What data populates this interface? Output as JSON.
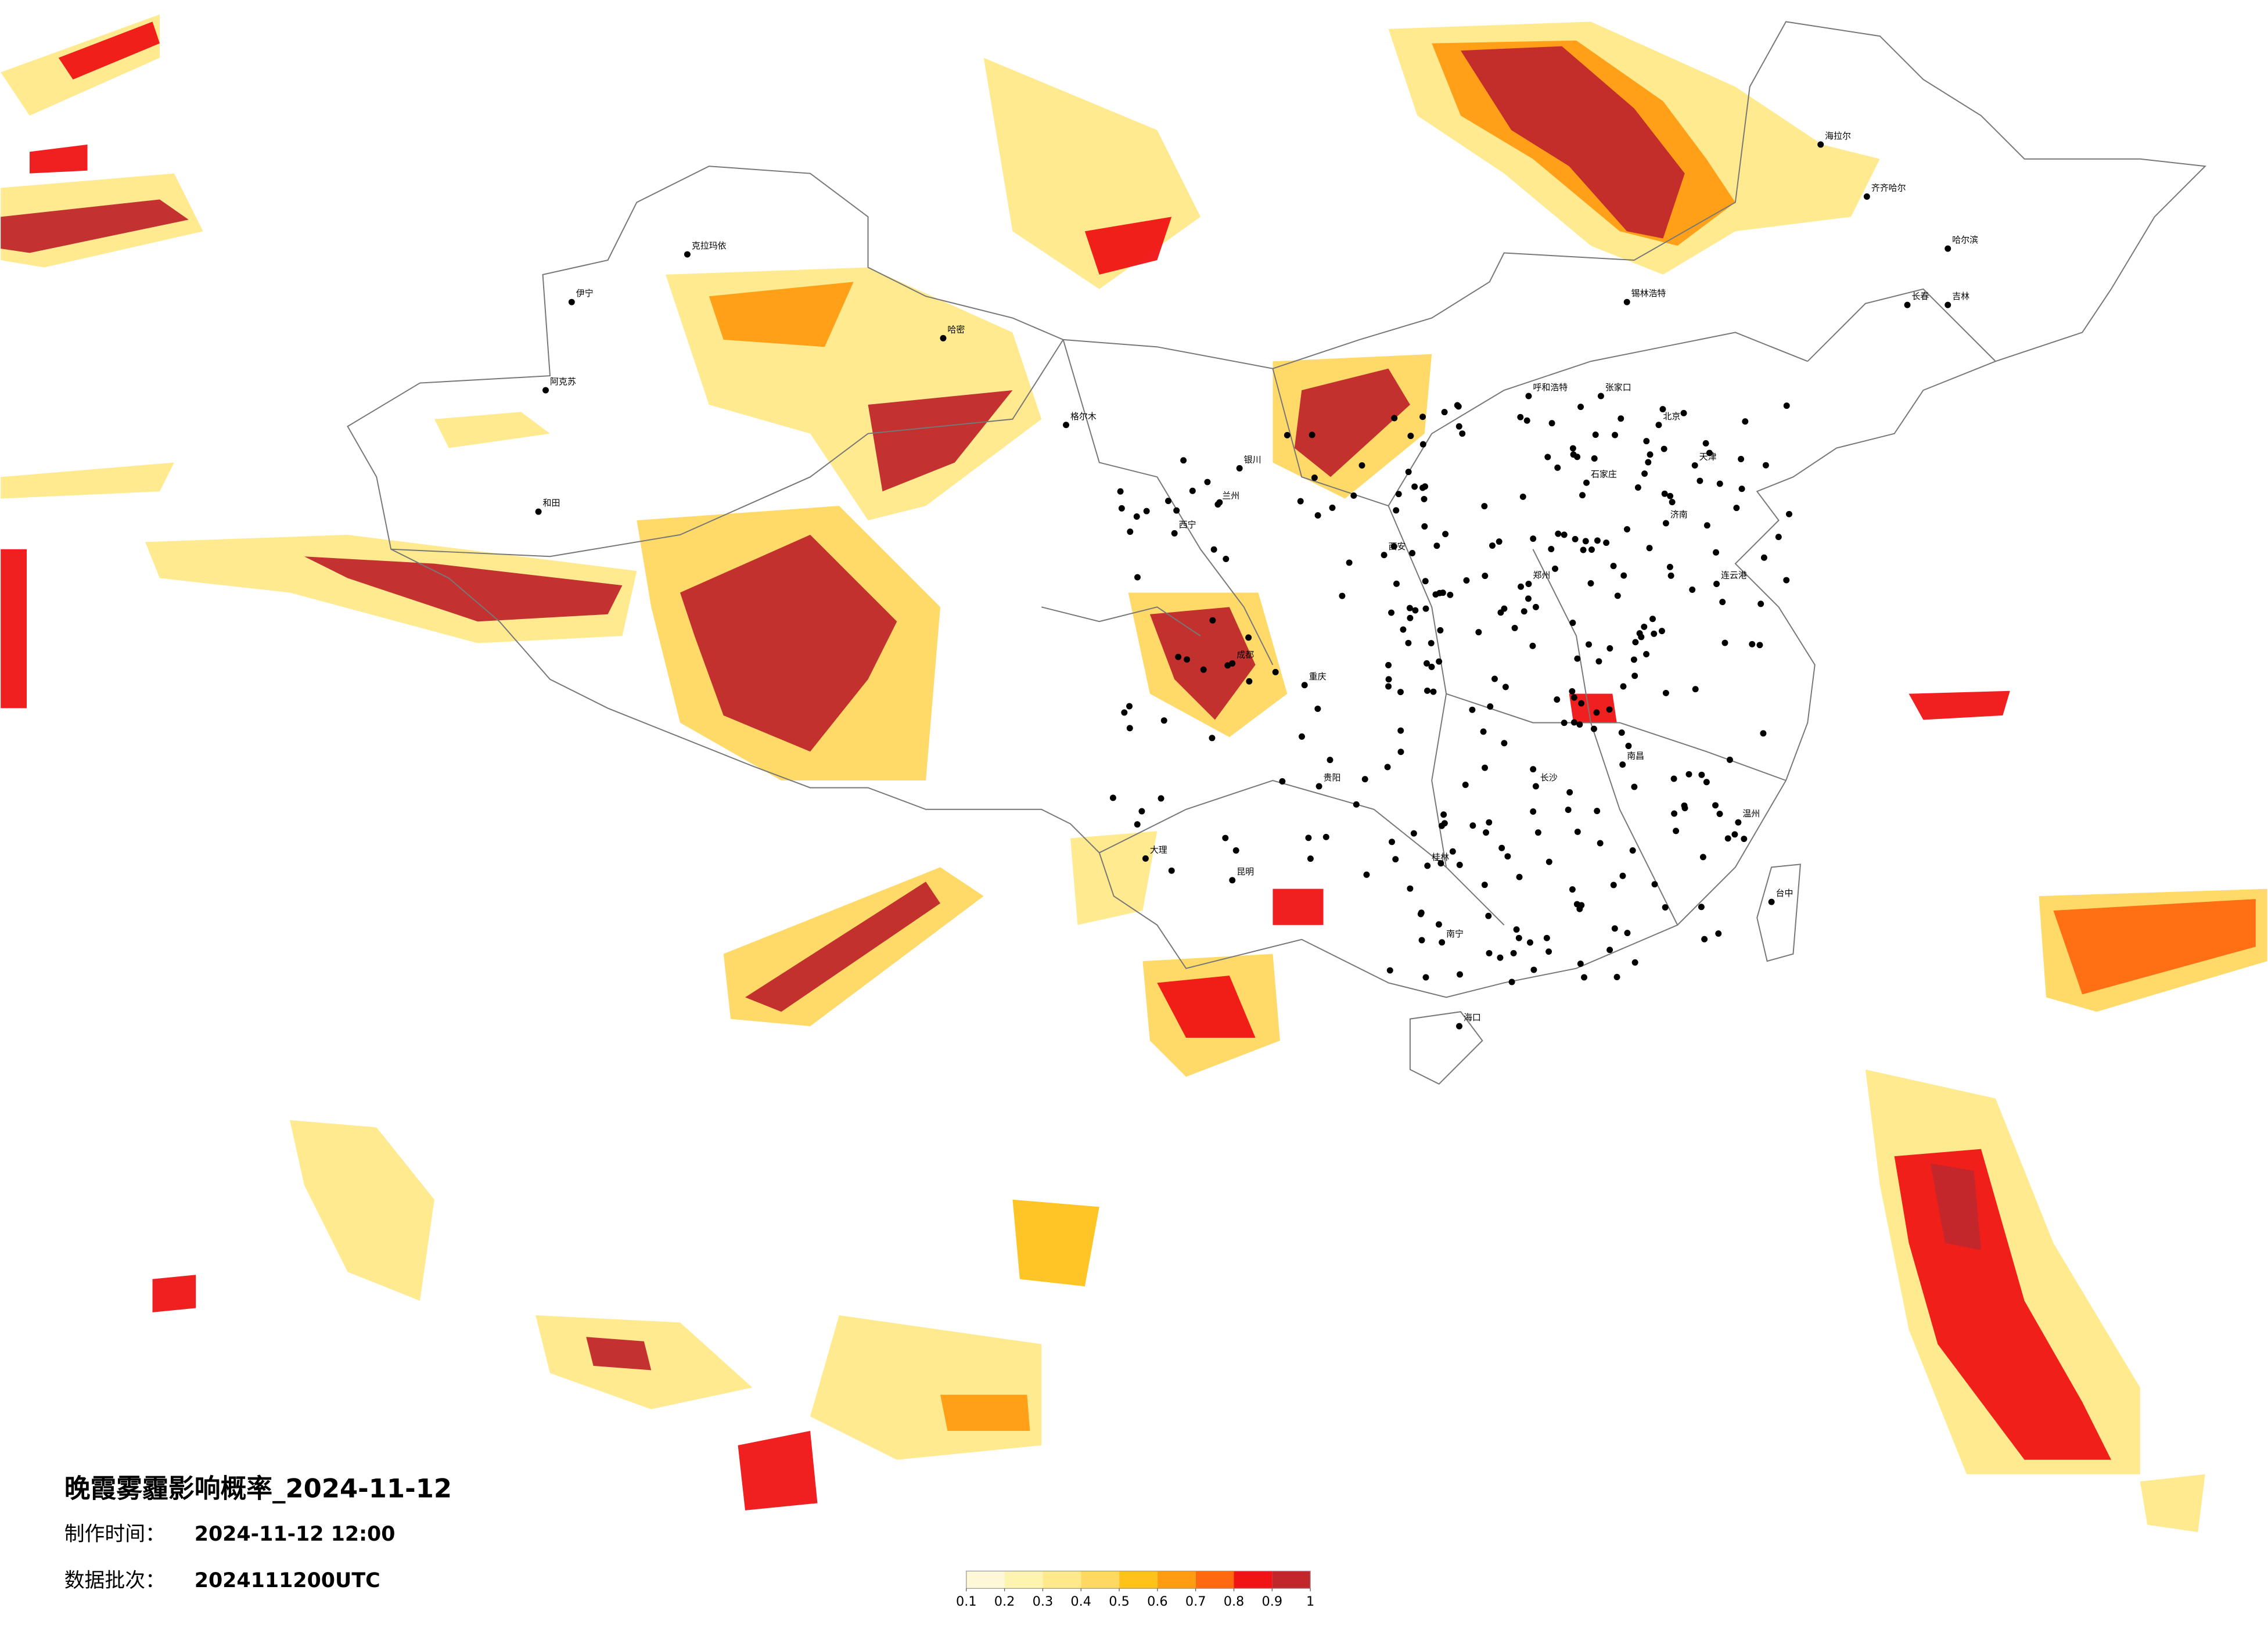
{
  "title": "晚霞雾霾影响概率_2024-11-12",
  "production_time": {
    "label": "制作时间：",
    "value": "2024-11-12 12:00"
  },
  "data_batch": {
    "label": "数据批次：",
    "value": "2024111200UTC"
  },
  "colorbar": {
    "ticks": [
      0.1,
      0.2,
      0.3,
      0.4,
      0.5,
      0.6,
      0.7,
      0.8,
      0.9,
      1
    ],
    "colors": [
      "#fff8d8",
      "#fff3b0",
      "#ffe98a",
      "#ffd861",
      "#ffc21a",
      "#ff9c12",
      "#ff6a10",
      "#f01414",
      "#c0282c"
    ]
  },
  "cities": [
    "海拉尔",
    "齐齐哈尔",
    "哈尔滨",
    "长春",
    "吉林",
    "锡林浩特",
    "呼和浩特",
    "张家口",
    "北京",
    "天津",
    "石家庄",
    "济南",
    "郑州",
    "西安",
    "兰州",
    "西宁",
    "银川",
    "成都",
    "重庆",
    "贵阳",
    "昆明",
    "南宁",
    "长沙",
    "南昌",
    "海口",
    "台中",
    "伊宁",
    "克拉玛依",
    "哈密",
    "阿克苏",
    "和田",
    "格尔木",
    "大理",
    "桂林",
    "温州",
    "连云港"
  ]
}
